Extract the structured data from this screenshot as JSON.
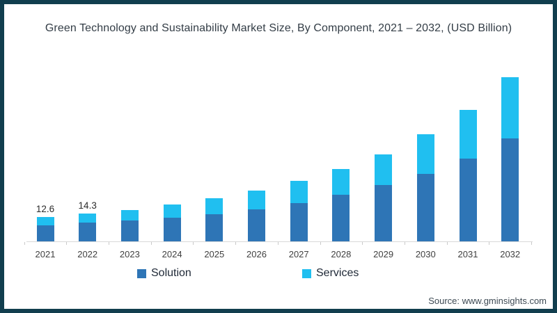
{
  "page": {
    "source": "Source: www.gminsights.com"
  },
  "colors": {
    "frame_border": "#113e4e",
    "solution": "#2e75b6",
    "services": "#20bff0",
    "axis": "#d9d9d9"
  },
  "chart_data": {
    "type": "bar",
    "stacked": true,
    "title": "Green Technology and Sustainability Market Size, By Component, 2021 – 2032, (USD Billion)",
    "unit": "USD Billion",
    "categories": [
      "2021",
      "2022",
      "2023",
      "2024",
      "2025",
      "2026",
      "2027",
      "2028",
      "2029",
      "2030",
      "2031",
      "2032"
    ],
    "series": [
      {
        "name": "Solution",
        "color": "#2e75b6",
        "values": [
          8.4,
          9.6,
          10.7,
          12.2,
          14.0,
          16.6,
          19.7,
          23.8,
          28.9,
          34.8,
          42.4,
          53.0
        ]
      },
      {
        "name": "Services",
        "color": "#20bff0",
        "values": [
          4.2,
          4.7,
          5.5,
          6.8,
          8.0,
          9.5,
          11.4,
          13.2,
          15.9,
          20.1,
          25.2,
          31.2
        ]
      }
    ],
    "totals": [
      12.6,
      14.3,
      16.2,
      19.0,
      22.0,
      26.1,
      31.1,
      37.0,
      44.8,
      54.9,
      67.6,
      84.2
    ],
    "data_labels": {
      "2021": "12.6",
      "2022": "14.3"
    },
    "legend": [
      "Solution",
      "Services"
    ],
    "legend_position": "bottom",
    "y_axis": {
      "visible": false
    },
    "gridlines": false
  }
}
